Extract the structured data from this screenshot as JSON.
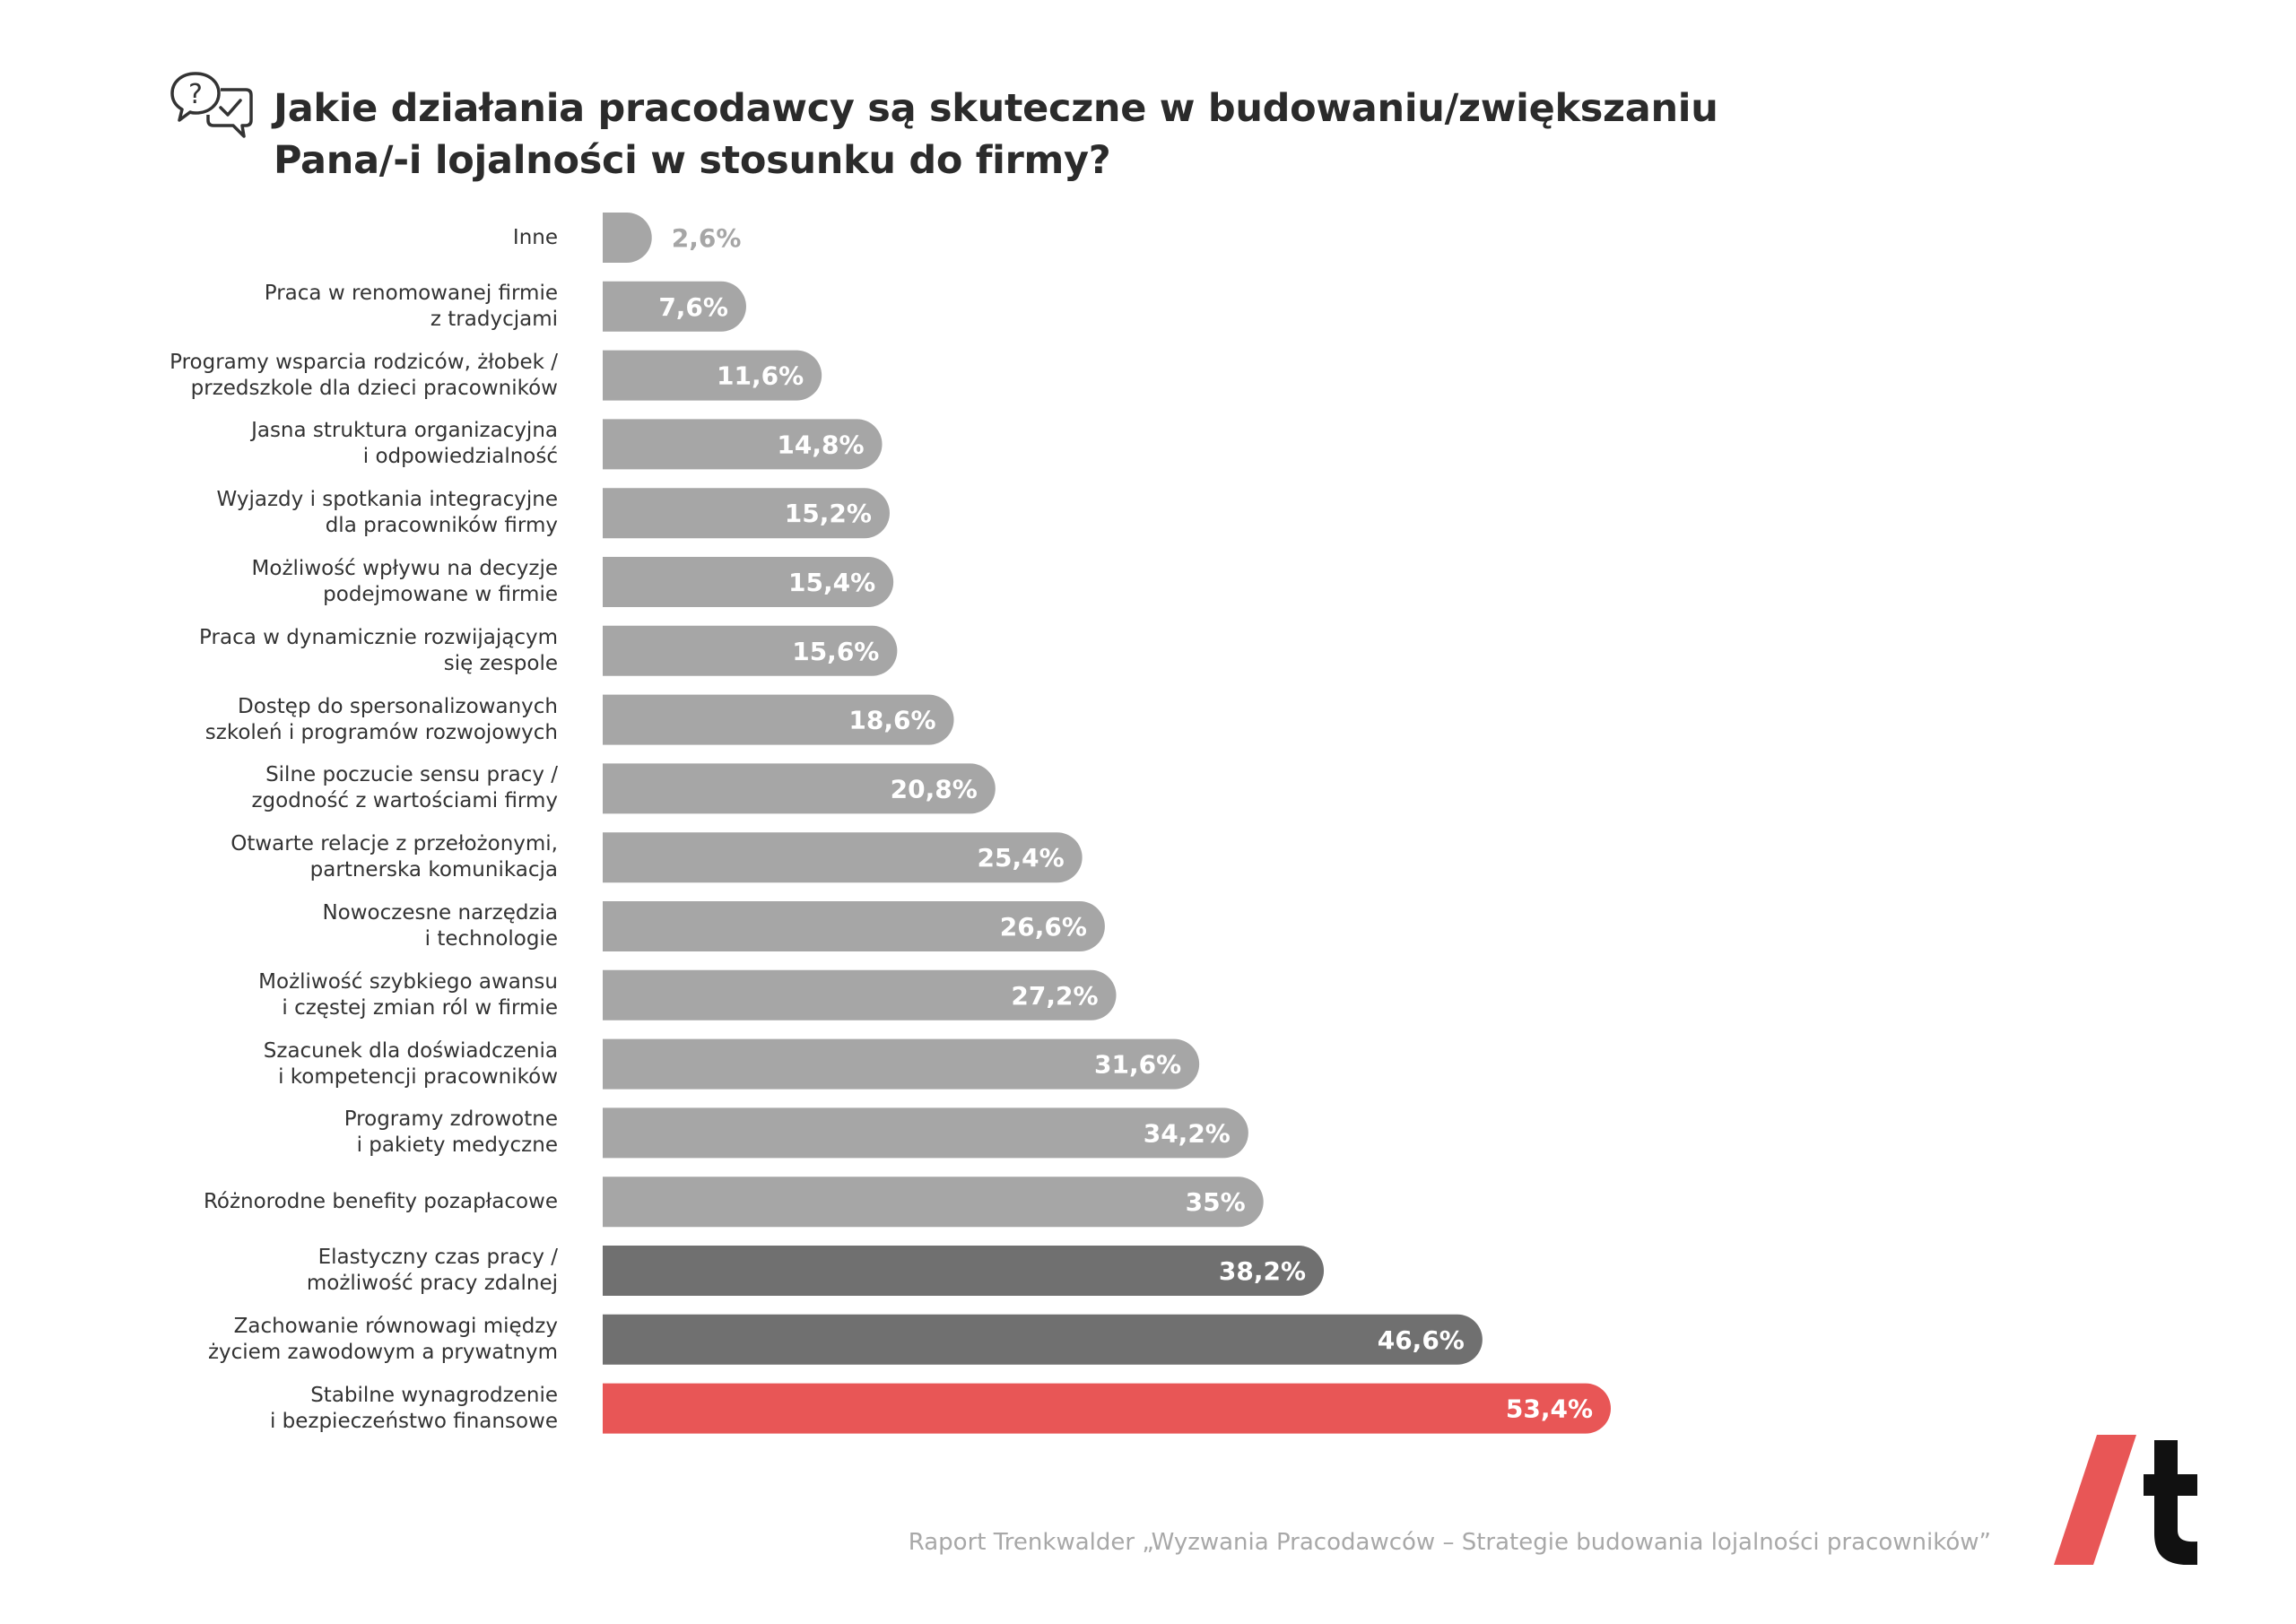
{
  "header": {
    "title_line1": "Jakie działania pracodawcy są skuteczne w budowaniu/zwiększaniu",
    "title_line2": "Pana/-i lojalności w stosunku do firmy?",
    "icon": "question-check-chat-icon"
  },
  "chart_data": {
    "type": "bar",
    "orientation": "horizontal",
    "title": "Jakie działania pracodawcy są skuteczne w budowaniu/zwiększaniu Pana/-i lojalności w stosunku do firmy?",
    "categories": [
      [
        "Inne"
      ],
      [
        "Praca w renomowanej firmie",
        "z tradycjami"
      ],
      [
        "Programy wsparcia rodziców, żłobek /",
        "przedszkole dla dzieci pracowników"
      ],
      [
        "Jasna struktura organizacyjna",
        "i odpowiedzialność"
      ],
      [
        "Wyjazdy i spotkania integracyjne",
        "dla pracowników firmy"
      ],
      [
        "Możliwość wpływu na decyzje",
        "podejmowane w firmie"
      ],
      [
        "Praca w dynamicznie rozwijającym",
        "się zespole"
      ],
      [
        "Dostęp do spersonalizowanych",
        "szkoleń i programów rozwojowych"
      ],
      [
        "Silne poczucie sensu pracy /",
        "zgodność z wartościami firmy"
      ],
      [
        "Otwarte relacje z przełożonymi,",
        "partnerska komunikacja"
      ],
      [
        "Nowoczesne narzędzia",
        "i technologie"
      ],
      [
        "Możliwość szybkiego awansu",
        "i częstej zmian ról w firmie"
      ],
      [
        "Szacunek dla doświadczenia",
        "i kompetencji pracowników"
      ],
      [
        "Programy zdrowotne",
        "i pakiety medyczne"
      ],
      [
        "Różnorodne benefity pozapłacowe"
      ],
      [
        "Elastyczny czas pracy /",
        "możliwość pracy zdalnej"
      ],
      [
        "Zachowanie równowagi między",
        "życiem zawodowym a prywatnym"
      ],
      [
        "Stabilne wynagrodzenie",
        "i bezpieczeństwo finansowe"
      ]
    ],
    "values": [
      2.6,
      7.6,
      11.6,
      14.8,
      15.2,
      15.4,
      15.6,
      18.6,
      20.8,
      25.4,
      26.6,
      27.2,
      31.6,
      34.2,
      35,
      38.2,
      46.6,
      53.4
    ],
    "value_labels": [
      "2,6%",
      "7,6%",
      "11,6%",
      "14,8%",
      "15,2%",
      "15,4%",
      "15,6%",
      "18,6%",
      "20,8%",
      "25,4%",
      "26,6%",
      "27,2%",
      "31,6%",
      "34,2%",
      "35%",
      "38,2%",
      "46,6%",
      "53,4%"
    ],
    "bar_colors": [
      "#a6a6a6",
      "#a6a6a6",
      "#a6a6a6",
      "#a6a6a6",
      "#a6a6a6",
      "#a6a6a6",
      "#a6a6a6",
      "#a6a6a6",
      "#a6a6a6",
      "#a6a6a6",
      "#a6a6a6",
      "#a6a6a6",
      "#a6a6a6",
      "#a6a6a6",
      "#a6a6a6",
      "#707070",
      "#707070",
      "#e85656"
    ],
    "xlim": [
      0,
      53.4
    ],
    "grid": false,
    "legend": "none"
  },
  "footer": {
    "source": "Raport Trenkwalder „Wyzwania Pracodawców – Strategie budowania lojalności pracowników”"
  },
  "brand": {
    "logo": "trenkwalder-slash-t-logo",
    "accent": "#e85656",
    "dark": "#111111"
  }
}
